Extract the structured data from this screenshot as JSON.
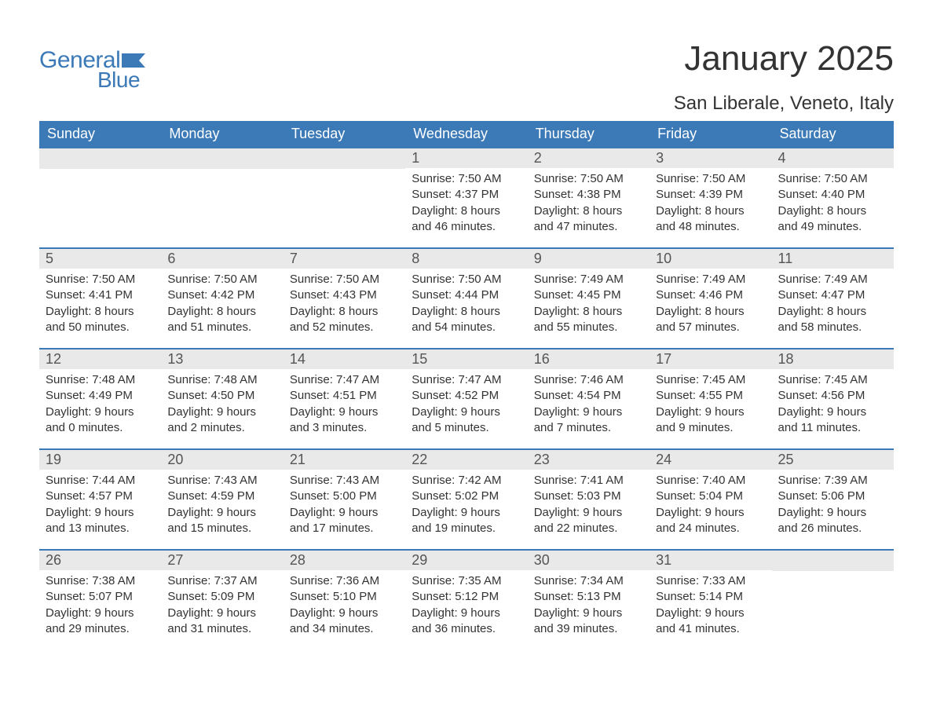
{
  "logo": {
    "text_general": "General",
    "text_blue": "Blue",
    "color": "#3b79b7"
  },
  "title": "January 2025",
  "location": "San Liberale, Veneto, Italy",
  "colors": {
    "header_bg": "#3b79b7",
    "header_text": "#ffffff",
    "daynum_bg": "#e9e9e9",
    "border": "#3b79b7",
    "body_text": "#333333"
  },
  "day_headers": [
    "Sunday",
    "Monday",
    "Tuesday",
    "Wednesday",
    "Thursday",
    "Friday",
    "Saturday"
  ],
  "weeks": [
    [
      null,
      null,
      null,
      {
        "n": "1",
        "sunrise": "Sunrise: 7:50 AM",
        "sunset": "Sunset: 4:37 PM",
        "d1": "Daylight: 8 hours",
        "d2": "and 46 minutes."
      },
      {
        "n": "2",
        "sunrise": "Sunrise: 7:50 AM",
        "sunset": "Sunset: 4:38 PM",
        "d1": "Daylight: 8 hours",
        "d2": "and 47 minutes."
      },
      {
        "n": "3",
        "sunrise": "Sunrise: 7:50 AM",
        "sunset": "Sunset: 4:39 PM",
        "d1": "Daylight: 8 hours",
        "d2": "and 48 minutes."
      },
      {
        "n": "4",
        "sunrise": "Sunrise: 7:50 AM",
        "sunset": "Sunset: 4:40 PM",
        "d1": "Daylight: 8 hours",
        "d2": "and 49 minutes."
      }
    ],
    [
      {
        "n": "5",
        "sunrise": "Sunrise: 7:50 AM",
        "sunset": "Sunset: 4:41 PM",
        "d1": "Daylight: 8 hours",
        "d2": "and 50 minutes."
      },
      {
        "n": "6",
        "sunrise": "Sunrise: 7:50 AM",
        "sunset": "Sunset: 4:42 PM",
        "d1": "Daylight: 8 hours",
        "d2": "and 51 minutes."
      },
      {
        "n": "7",
        "sunrise": "Sunrise: 7:50 AM",
        "sunset": "Sunset: 4:43 PM",
        "d1": "Daylight: 8 hours",
        "d2": "and 52 minutes."
      },
      {
        "n": "8",
        "sunrise": "Sunrise: 7:50 AM",
        "sunset": "Sunset: 4:44 PM",
        "d1": "Daylight: 8 hours",
        "d2": "and 54 minutes."
      },
      {
        "n": "9",
        "sunrise": "Sunrise: 7:49 AM",
        "sunset": "Sunset: 4:45 PM",
        "d1": "Daylight: 8 hours",
        "d2": "and 55 minutes."
      },
      {
        "n": "10",
        "sunrise": "Sunrise: 7:49 AM",
        "sunset": "Sunset: 4:46 PM",
        "d1": "Daylight: 8 hours",
        "d2": "and 57 minutes."
      },
      {
        "n": "11",
        "sunrise": "Sunrise: 7:49 AM",
        "sunset": "Sunset: 4:47 PM",
        "d1": "Daylight: 8 hours",
        "d2": "and 58 minutes."
      }
    ],
    [
      {
        "n": "12",
        "sunrise": "Sunrise: 7:48 AM",
        "sunset": "Sunset: 4:49 PM",
        "d1": "Daylight: 9 hours",
        "d2": "and 0 minutes."
      },
      {
        "n": "13",
        "sunrise": "Sunrise: 7:48 AM",
        "sunset": "Sunset: 4:50 PM",
        "d1": "Daylight: 9 hours",
        "d2": "and 2 minutes."
      },
      {
        "n": "14",
        "sunrise": "Sunrise: 7:47 AM",
        "sunset": "Sunset: 4:51 PM",
        "d1": "Daylight: 9 hours",
        "d2": "and 3 minutes."
      },
      {
        "n": "15",
        "sunrise": "Sunrise: 7:47 AM",
        "sunset": "Sunset: 4:52 PM",
        "d1": "Daylight: 9 hours",
        "d2": "and 5 minutes."
      },
      {
        "n": "16",
        "sunrise": "Sunrise: 7:46 AM",
        "sunset": "Sunset: 4:54 PM",
        "d1": "Daylight: 9 hours",
        "d2": "and 7 minutes."
      },
      {
        "n": "17",
        "sunrise": "Sunrise: 7:45 AM",
        "sunset": "Sunset: 4:55 PM",
        "d1": "Daylight: 9 hours",
        "d2": "and 9 minutes."
      },
      {
        "n": "18",
        "sunrise": "Sunrise: 7:45 AM",
        "sunset": "Sunset: 4:56 PM",
        "d1": "Daylight: 9 hours",
        "d2": "and 11 minutes."
      }
    ],
    [
      {
        "n": "19",
        "sunrise": "Sunrise: 7:44 AM",
        "sunset": "Sunset: 4:57 PM",
        "d1": "Daylight: 9 hours",
        "d2": "and 13 minutes."
      },
      {
        "n": "20",
        "sunrise": "Sunrise: 7:43 AM",
        "sunset": "Sunset: 4:59 PM",
        "d1": "Daylight: 9 hours",
        "d2": "and 15 minutes."
      },
      {
        "n": "21",
        "sunrise": "Sunrise: 7:43 AM",
        "sunset": "Sunset: 5:00 PM",
        "d1": "Daylight: 9 hours",
        "d2": "and 17 minutes."
      },
      {
        "n": "22",
        "sunrise": "Sunrise: 7:42 AM",
        "sunset": "Sunset: 5:02 PM",
        "d1": "Daylight: 9 hours",
        "d2": "and 19 minutes."
      },
      {
        "n": "23",
        "sunrise": "Sunrise: 7:41 AM",
        "sunset": "Sunset: 5:03 PM",
        "d1": "Daylight: 9 hours",
        "d2": "and 22 minutes."
      },
      {
        "n": "24",
        "sunrise": "Sunrise: 7:40 AM",
        "sunset": "Sunset: 5:04 PM",
        "d1": "Daylight: 9 hours",
        "d2": "and 24 minutes."
      },
      {
        "n": "25",
        "sunrise": "Sunrise: 7:39 AM",
        "sunset": "Sunset: 5:06 PM",
        "d1": "Daylight: 9 hours",
        "d2": "and 26 minutes."
      }
    ],
    [
      {
        "n": "26",
        "sunrise": "Sunrise: 7:38 AM",
        "sunset": "Sunset: 5:07 PM",
        "d1": "Daylight: 9 hours",
        "d2": "and 29 minutes."
      },
      {
        "n": "27",
        "sunrise": "Sunrise: 7:37 AM",
        "sunset": "Sunset: 5:09 PM",
        "d1": "Daylight: 9 hours",
        "d2": "and 31 minutes."
      },
      {
        "n": "28",
        "sunrise": "Sunrise: 7:36 AM",
        "sunset": "Sunset: 5:10 PM",
        "d1": "Daylight: 9 hours",
        "d2": "and 34 minutes."
      },
      {
        "n": "29",
        "sunrise": "Sunrise: 7:35 AM",
        "sunset": "Sunset: 5:12 PM",
        "d1": "Daylight: 9 hours",
        "d2": "and 36 minutes."
      },
      {
        "n": "30",
        "sunrise": "Sunrise: 7:34 AM",
        "sunset": "Sunset: 5:13 PM",
        "d1": "Daylight: 9 hours",
        "d2": "and 39 minutes."
      },
      {
        "n": "31",
        "sunrise": "Sunrise: 7:33 AM",
        "sunset": "Sunset: 5:14 PM",
        "d1": "Daylight: 9 hours",
        "d2": "and 41 minutes."
      },
      null
    ]
  ]
}
